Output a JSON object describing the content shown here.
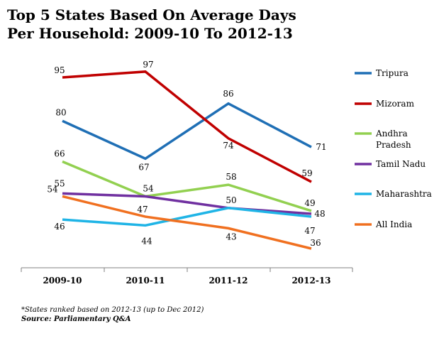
{
  "chart_data": {
    "type": "line",
    "title": "Top 5 States Based On Average Days Per Household: 2009-10 To 2012-13",
    "categories": [
      "2009-10",
      "2010-11",
      "2011-12",
      "2012-13"
    ],
    "ylim": [
      20,
      100
    ],
    "grid": false,
    "legend_position": "right",
    "series": [
      {
        "name": "Tripura",
        "color": "#1f6fb5",
        "values": [
          80,
          67,
          86,
          71
        ]
      },
      {
        "name": "Mizoram",
        "color": "#c00000",
        "values": [
          95,
          97,
          74,
          59
        ]
      },
      {
        "name": "Andhra Pradesh",
        "color": "#92d050",
        "values": [
          66,
          54,
          58,
          49
        ]
      },
      {
        "name": "Tamil Nadu",
        "color": "#7030a0",
        "values": [
          55,
          54,
          50,
          48
        ]
      },
      {
        "name": "Maharashtra",
        "color": "#1fb4e6",
        "values": [
          46,
          44,
          50,
          47
        ]
      },
      {
        "name": "All India",
        "color": "#f07020",
        "values": [
          54,
          47,
          43,
          36
        ]
      }
    ]
  },
  "footnote": "*States ranked based on 2012-13 (up to Dec 2012)",
  "source": "Source: Parliamentary Q&A"
}
